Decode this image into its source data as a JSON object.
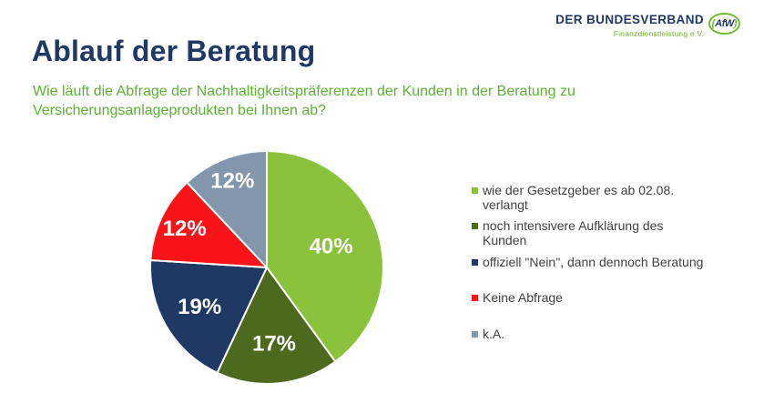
{
  "slide": {
    "title": "Ablauf der Beratung",
    "subtitle": "Wie läuft die Abfrage der Nachhaltigkeitspräferenzen der Kunden in der Beratung zu Versicherungsanlageprodukten bei Ihnen ab?"
  },
  "logo": {
    "org_name": "DER BUNDESVERBAND",
    "org_subtitle": "Finanzdienstleistung e.V.",
    "badge_paren_open": "(",
    "badge_text": "AfW",
    "badge_paren_close": ")"
  },
  "colors": {
    "navy": "#1F3864",
    "light_green": "#8BC23C",
    "dark_green": "#4C691E",
    "red": "#F91419",
    "gray_blue": "#8496AC",
    "subtitle_green": "#5BB331",
    "logo_green": "#6CB52C",
    "legend_text": "#404040"
  },
  "chart_data": {
    "type": "pie",
    "title": "",
    "categories": [
      "wie der Gesetzgeber es ab 02.08.\nverlangt",
      "noch intensivere Aufklärung des\nKunden",
      "offiziell \"Nein\", dann dennoch Beratung",
      "Keine Abfrage",
      "k.A."
    ],
    "values": [
      40,
      17,
      19,
      12,
      12
    ],
    "labels": [
      "40%",
      "17%",
      "19%",
      "12%",
      "12%"
    ],
    "colors": [
      "#8BC23C",
      "#4C691E",
      "#1F3864",
      "#F91419",
      "#8496AC"
    ],
    "start_angle_deg": 0,
    "direction": "clockwise",
    "legend_position": "right",
    "slice_border_color": "#ffffff"
  }
}
